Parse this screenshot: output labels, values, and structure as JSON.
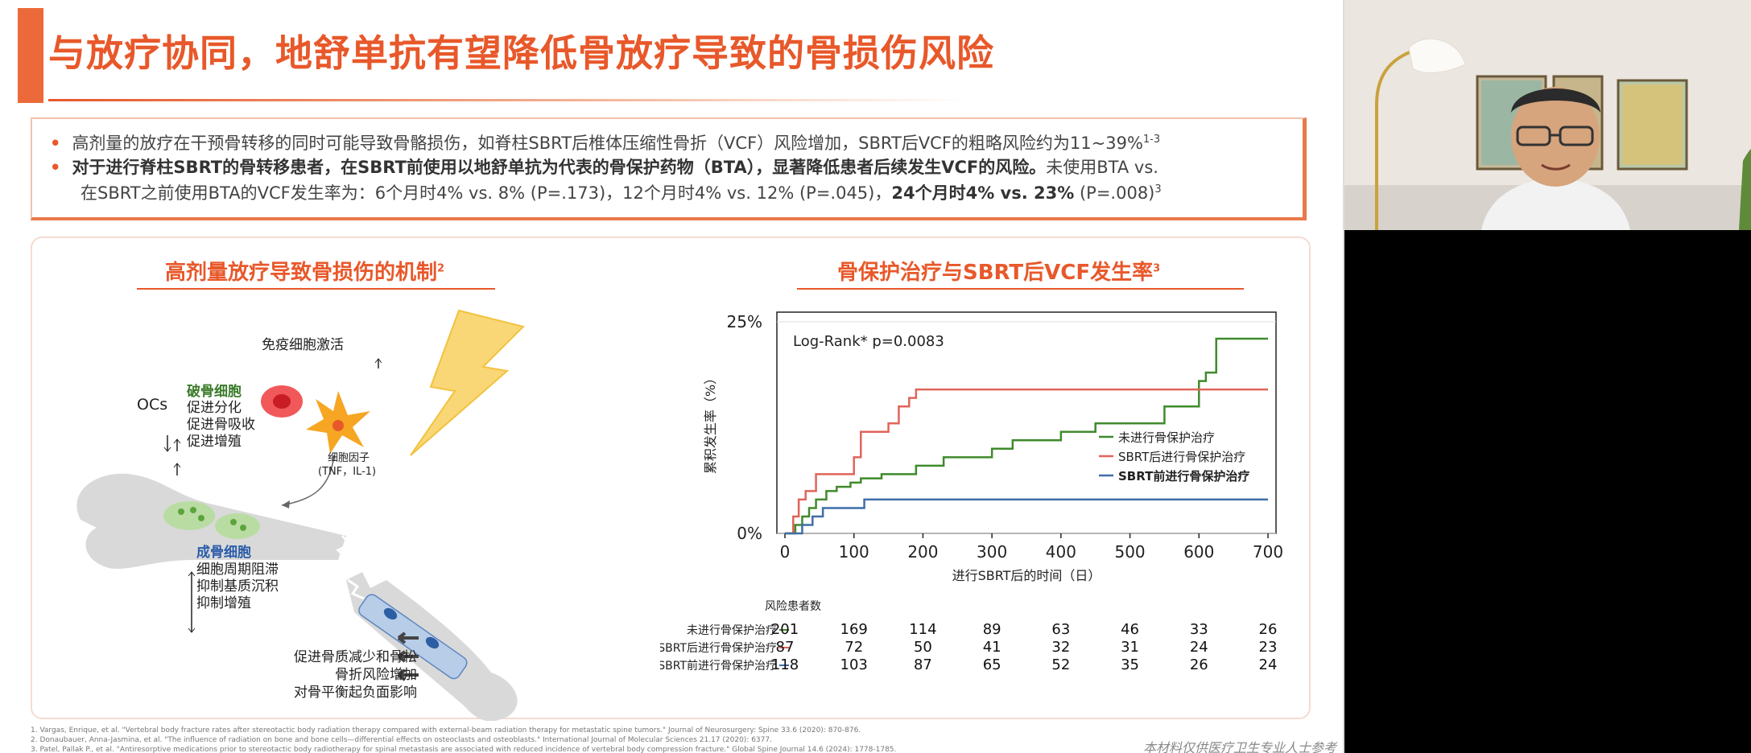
{
  "slide": {
    "title": "与放疗协同，地舒单抗有望降低骨放疗导致的骨损伤风险",
    "bullets": {
      "b1_text": "高剂量的放疗在干预骨转移的同时可能导致骨骼损伤，如脊柱SBRT后椎体压缩性骨折（VCF）风险增加，SBRT后VCF的粗略风险约为11~39%",
      "b1_sup": "1-3",
      "b2_bold": "对于进行脊柱SBRT的骨转移患者，在SBRT前使用以地舒单抗为代表的骨保护药物（BTA），显著降低患者后续发生VCF的风险。",
      "b2_rest": "未使用BTA vs.",
      "b3_text": "在SBRT之前使用BTA的VCF发生率为：6个月时4% vs. 8% (P=.173)，12个月时4% vs. 12% (P=.045)，",
      "b3_bold": "24个月时4% vs. 23%",
      "b3_tail": " (P=.008)",
      "b3_sup": "3"
    },
    "left_panel": {
      "title": "高剂量放疗导致骨损伤的机制",
      "title_sup": "2",
      "immune": "免疫细胞激活",
      "osteoclast_head": "破骨细胞",
      "ocs": "OCs",
      "oc_items": [
        "促进分化",
        "促进骨吸收",
        "促进增殖"
      ],
      "cytokine_1": "细胞因子",
      "cytokine_2": "(TNF，IL-1)",
      "osteoblast_head": "成骨细胞",
      "ob_items": [
        "细胞周期阻滞",
        "抑制基质沉积",
        "抑制增殖"
      ],
      "effects": [
        "促进骨质减少和骨松",
        "骨折风险增加",
        "对骨平衡起负面影响"
      ]
    },
    "right_panel": {
      "title": "骨保护治疗与SBRT后VCF发生率",
      "title_sup": "3"
    },
    "references": [
      "1. Vargas, Enrique, et al. \"Vertebral body fracture rates after stereotactic body radiation therapy compared with external-beam radiation therapy for metastatic spine tumors.\" Journal of Neurosurgery: Spine 33.6 (2020): 870-876.",
      "2. Donaubauer, Anna-Jasmina, et al. \"The influence of radiation on bone and bone cells—differential effects on osteoclasts and osteoblasts.\" International Journal of Molecular Sciences 21.17 (2020): 6377.",
      "3. Patel, Pallak P., et al. \"Antiresorptive medications prior to stereotactic body radiotherapy for spinal metastasis are associated with reduced incidence of vertebral body compression fracture.\" Global Spine Journal 14.6 (2024): 1778-1785."
    ],
    "disclaimer": "本材料仅供医疗卫生专业人士参考"
  },
  "colors": {
    "accent": "#e8582a",
    "green": "#3f8a2c",
    "red": "#e0645a",
    "blue": "#3f6ea8"
  },
  "chart_data": {
    "type": "line",
    "annotation": "Log-Rank* p=0.0083",
    "xlabel": "进行SBRT后的时间（日）",
    "ylabel": "累积发生率（%）",
    "xlim": [
      0,
      700
    ],
    "ylim": [
      0,
      25
    ],
    "x_ticks": [
      "0",
      "100",
      "200",
      "300",
      "400",
      "500",
      "600",
      "700"
    ],
    "y_ticks": [
      "0%",
      "25%"
    ],
    "legend_position": "right",
    "series": [
      {
        "name": "未进行骨保护治疗",
        "color": "#3f8a2c",
        "points": [
          [
            0,
            0
          ],
          [
            15,
            0
          ],
          [
            15,
            1
          ],
          [
            25,
            2
          ],
          [
            35,
            3
          ],
          [
            45,
            4
          ],
          [
            60,
            5
          ],
          [
            75,
            5.5
          ],
          [
            95,
            6
          ],
          [
            110,
            6.5
          ],
          [
            140,
            7
          ],
          [
            190,
            8
          ],
          [
            230,
            9
          ],
          [
            300,
            10
          ],
          [
            330,
            11
          ],
          [
            400,
            12
          ],
          [
            450,
            13
          ],
          [
            550,
            15
          ],
          [
            600,
            18
          ],
          [
            610,
            19
          ],
          [
            625,
            23
          ],
          [
            700,
            23
          ]
        ]
      },
      {
        "name": "SBRT后进行骨保护治疗",
        "color": "#e0645a",
        "points": [
          [
            0,
            0
          ],
          [
            12,
            0
          ],
          [
            12,
            2
          ],
          [
            20,
            4
          ],
          [
            30,
            5
          ],
          [
            45,
            7
          ],
          [
            100,
            9
          ],
          [
            110,
            12
          ],
          [
            150,
            13
          ],
          [
            165,
            15
          ],
          [
            180,
            16
          ],
          [
            190,
            17
          ],
          [
            700,
            17
          ]
        ]
      },
      {
        "name": "SBRT前进行骨保护治疗",
        "color": "#3f6ea8",
        "points": [
          [
            0,
            0
          ],
          [
            25,
            0
          ],
          [
            25,
            1
          ],
          [
            40,
            2
          ],
          [
            55,
            3
          ],
          [
            115,
            3
          ],
          [
            115,
            4
          ],
          [
            700,
            4
          ]
        ]
      }
    ],
    "risk_table": {
      "header": "风险患者数",
      "times": [
        0,
        100,
        200,
        300,
        400,
        500,
        600,
        700
      ],
      "rows": [
        {
          "label": "未进行骨保护治疗",
          "values": [
            "201",
            "169",
            "114",
            "89",
            "63",
            "46",
            "33",
            "26"
          ]
        },
        {
          "label": "SBRT后进行骨保护治疗",
          "values": [
            "87",
            "72",
            "50",
            "41",
            "32",
            "31",
            "24",
            "23"
          ]
        },
        {
          "label": "SBRT前进行骨保护治疗",
          "values": [
            "118",
            "103",
            "87",
            "65",
            "52",
            "35",
            "26",
            "24"
          ]
        }
      ]
    }
  }
}
